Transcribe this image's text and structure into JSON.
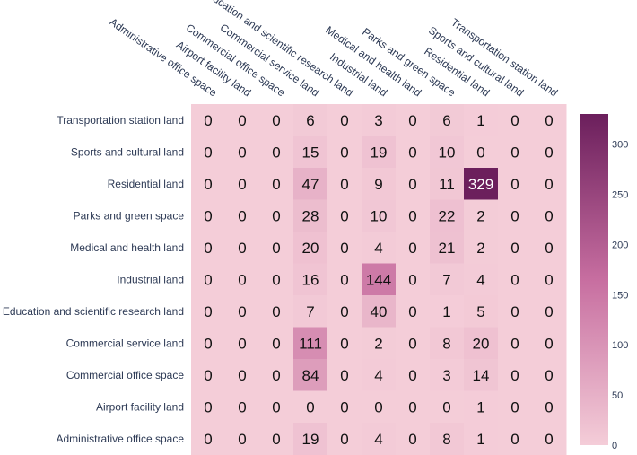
{
  "chart_data": {
    "type": "heatmap",
    "title": "",
    "xlabel": "",
    "ylabel": "",
    "x_categories": [
      "Administrative office space",
      "Airport facility land",
      "Commercial office space",
      "Commercial service land",
      "Education and scientific research land",
      "Industrial land",
      "Medical and health land",
      "Parks and green space",
      "Residential land",
      "Sports and cultural land",
      "Transportation station land"
    ],
    "y_categories": [
      "Transportation station land",
      "Sports and cultural land",
      "Residential land",
      "Parks and green space",
      "Medical and health land",
      "Industrial land",
      "Education and scientific research land",
      "Commercial service land",
      "Commercial office space",
      "Airport facility land",
      "Administrative office space"
    ],
    "values": [
      [
        0,
        0,
        0,
        6,
        0,
        3,
        0,
        6,
        1,
        0,
        0
      ],
      [
        0,
        0,
        0,
        15,
        0,
        19,
        0,
        10,
        0,
        0,
        0
      ],
      [
        0,
        0,
        0,
        47,
        0,
        9,
        0,
        11,
        329,
        0,
        0
      ],
      [
        0,
        0,
        0,
        28,
        0,
        10,
        0,
        22,
        2,
        0,
        0
      ],
      [
        0,
        0,
        0,
        20,
        0,
        4,
        0,
        21,
        2,
        0,
        0
      ],
      [
        0,
        0,
        0,
        16,
        0,
        144,
        0,
        7,
        4,
        0,
        0
      ],
      [
        0,
        0,
        0,
        7,
        0,
        40,
        0,
        1,
        5,
        0,
        0
      ],
      [
        0,
        0,
        0,
        111,
        0,
        2,
        0,
        8,
        20,
        0,
        0
      ],
      [
        0,
        0,
        0,
        84,
        0,
        4,
        0,
        3,
        14,
        0,
        0
      ],
      [
        0,
        0,
        0,
        0,
        0,
        0,
        0,
        0,
        1,
        0,
        0
      ],
      [
        0,
        0,
        0,
        19,
        0,
        4,
        0,
        8,
        1,
        0,
        0
      ]
    ],
    "colorscale": {
      "min": 0,
      "max": 330,
      "low_color": "#f4cdd8",
      "high_color": "#6b1f5c",
      "ticks": [
        0,
        50,
        100,
        150,
        200,
        250,
        300
      ]
    },
    "text_color_dark": "#111111",
    "text_color_light": "#ffffff"
  }
}
